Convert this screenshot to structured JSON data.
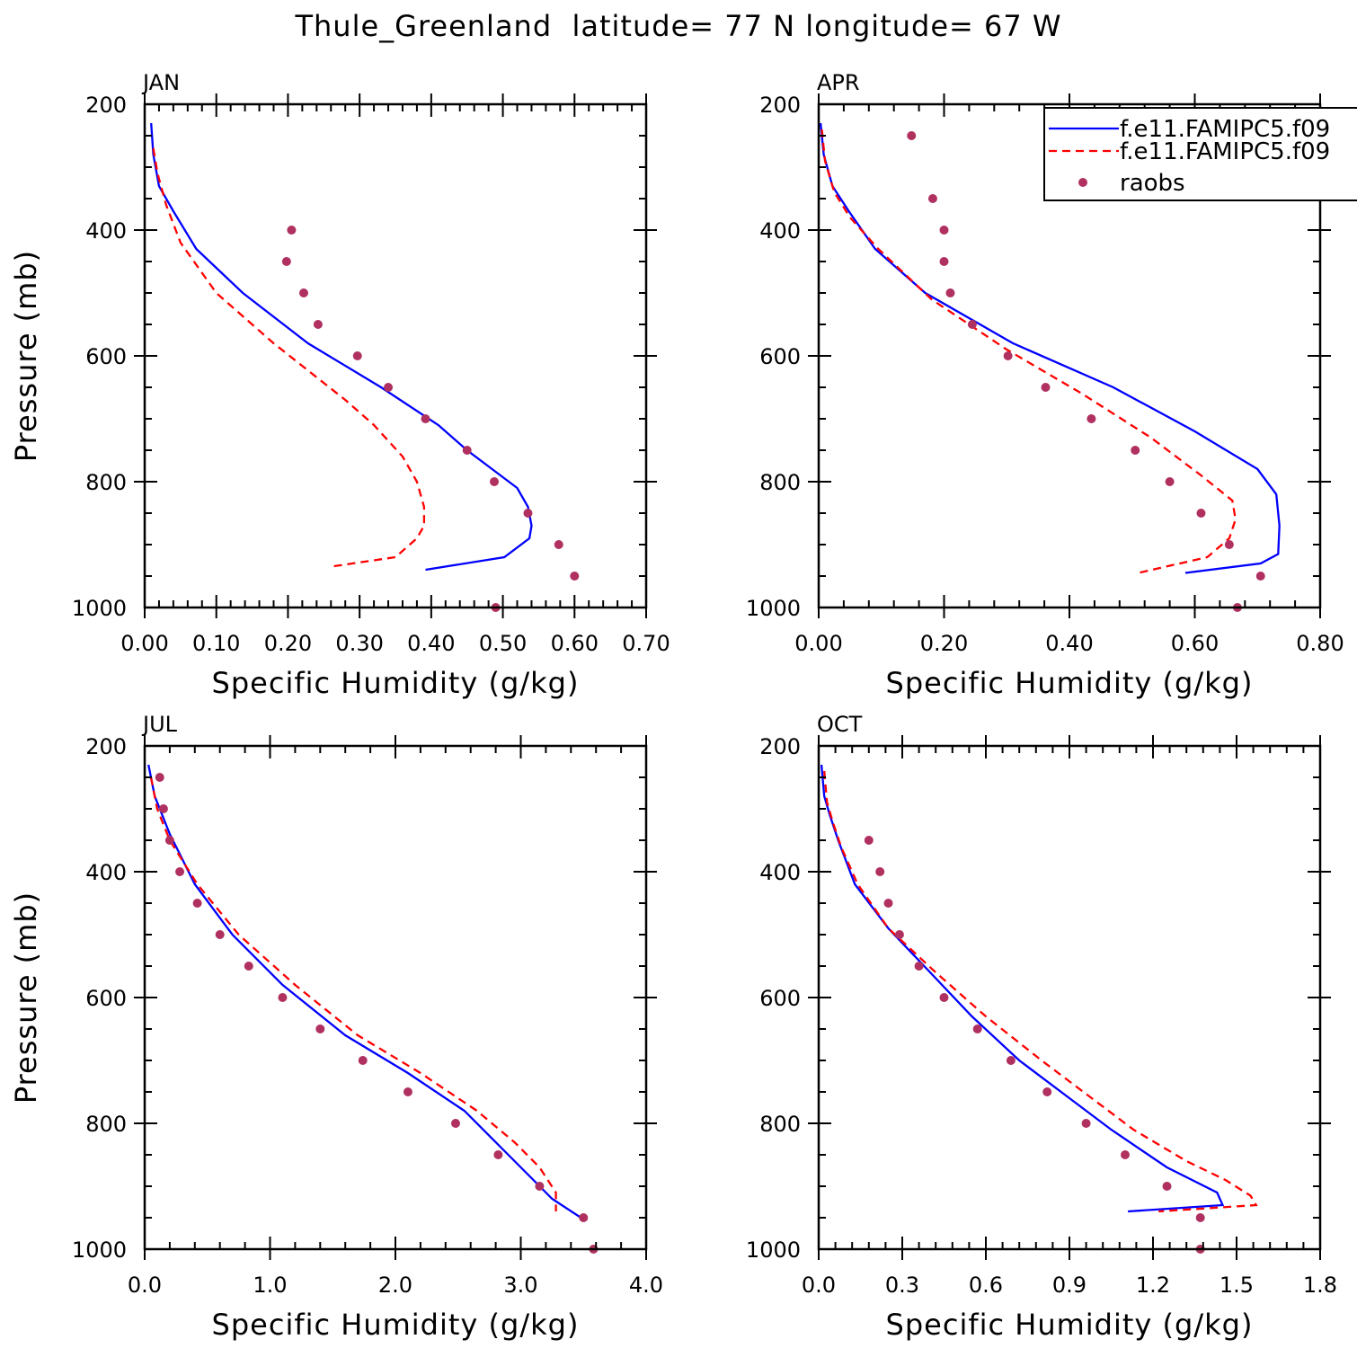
{
  "title": "Thule_Greenland  latitude= 77 N longitude= 67 W",
  "legend": [
    {
      "label": "f.e11.FAMIPC5.f09",
      "color": "#0000ff",
      "style": "solid"
    },
    {
      "label": "f.e11.FAMIPC5.f09",
      "color": "#ff0000",
      "style": "dashed"
    },
    {
      "label": "raobs",
      "color": "#b03060",
      "style": "marker"
    }
  ],
  "chart_data": [
    {
      "type": "line",
      "panel": "JAN",
      "xlabel": "Specific Humidity (g/kg)",
      "ylabel": "Pressure (mb)",
      "xlim": [
        0,
        0.7
      ],
      "ylim": [
        200,
        1000
      ],
      "xticks": [
        "0.00",
        "0.10",
        "0.20",
        "0.30",
        "0.40",
        "0.50",
        "0.60",
        "0.70"
      ],
      "yticks": [
        "200",
        "400",
        "600",
        "800",
        "1000"
      ],
      "series": [
        {
          "color": "#0000ff",
          "dash": "none",
          "kind": "line",
          "x": [
            0.009,
            0.012,
            0.02,
            0.04,
            0.072,
            0.137,
            0.228,
            0.33,
            0.41,
            0.45,
            0.485,
            0.52,
            0.535,
            0.54,
            0.537,
            0.502,
            0.392
          ],
          "y": [
            230,
            280,
            330,
            370,
            430,
            500,
            580,
            650,
            710,
            750,
            780,
            810,
            840,
            870,
            890,
            920,
            940
          ]
        },
        {
          "color": "#ff0000",
          "dash": "9,6",
          "kind": "line",
          "x": [
            0.012,
            0.018,
            0.03,
            0.05,
            0.1,
            0.18,
            0.28,
            0.32,
            0.36,
            0.38,
            0.39,
            0.39,
            0.38,
            0.35,
            0.26
          ],
          "y": [
            270,
            310,
            360,
            420,
            500,
            580,
            670,
            710,
            760,
            800,
            840,
            870,
            890,
            920,
            935
          ]
        },
        {
          "color": "#b03060",
          "dash": "none",
          "kind": "marker",
          "x": [
            0.205,
            0.198,
            0.222,
            0.242,
            0.297,
            0.34,
            0.392,
            0.45,
            0.488,
            0.535,
            0.578,
            0.6,
            0.49
          ],
          "y": [
            400,
            450,
            500,
            550,
            600,
            650,
            700,
            750,
            800,
            850,
            900,
            950,
            1000
          ]
        }
      ]
    },
    {
      "type": "line",
      "panel": "APR",
      "xlabel": "Specific Humidity (g/kg)",
      "ylabel": "",
      "xlim": [
        0,
        0.8
      ],
      "ylim": [
        200,
        1000
      ],
      "xticks": [
        "0.00",
        "0.20",
        "0.40",
        "0.60",
        "0.80"
      ],
      "yticks": [
        "200",
        "400",
        "600",
        "800",
        "1000"
      ],
      "series": [
        {
          "color": "#0000ff",
          "dash": "none",
          "kind": "line",
          "x": [
            0.003,
            0.008,
            0.022,
            0.048,
            0.09,
            0.17,
            0.31,
            0.47,
            0.6,
            0.7,
            0.73,
            0.735,
            0.733,
            0.705,
            0.585
          ],
          "y": [
            230,
            280,
            330,
            370,
            430,
            500,
            580,
            650,
            720,
            780,
            820,
            870,
            915,
            930,
            945
          ]
        },
        {
          "color": "#ff0000",
          "dash": "9,6",
          "kind": "line",
          "x": [
            0.005,
            0.01,
            0.025,
            0.05,
            0.095,
            0.18,
            0.3,
            0.42,
            0.53,
            0.61,
            0.66,
            0.665,
            0.655,
            0.62,
            0.51
          ],
          "y": [
            240,
            290,
            340,
            380,
            430,
            510,
            590,
            660,
            730,
            790,
            830,
            860,
            890,
            920,
            945
          ]
        },
        {
          "color": "#b03060",
          "dash": "none",
          "kind": "marker",
          "x": [
            0.148,
            0.182,
            0.2,
            0.2,
            0.21,
            0.245,
            0.302,
            0.362,
            0.435,
            0.505,
            0.56,
            0.61,
            0.655,
            0.705,
            0.668
          ],
          "y": [
            250,
            350,
            400,
            450,
            500,
            550,
            600,
            650,
            700,
            750,
            800,
            850,
            900,
            950,
            1000
          ]
        }
      ]
    },
    {
      "type": "line",
      "panel": "JUL",
      "xlabel": "Specific Humidity (g/kg)",
      "ylabel": "Pressure (mb)",
      "xlim": [
        0,
        4
      ],
      "ylim": [
        200,
        1000
      ],
      "xticks": [
        "0.0",
        "1.0",
        "2.0",
        "3.0",
        "4.0"
      ],
      "yticks": [
        "200",
        "400",
        "600",
        "800",
        "1000"
      ],
      "series": [
        {
          "color": "#0000ff",
          "dash": "none",
          "kind": "line",
          "x": [
            0.03,
            0.08,
            0.2,
            0.4,
            0.7,
            1.1,
            1.6,
            2.1,
            2.55,
            2.85,
            3.1,
            3.25,
            3.48
          ],
          "y": [
            230,
            280,
            340,
            420,
            500,
            580,
            660,
            720,
            780,
            840,
            890,
            920,
            950
          ]
        },
        {
          "color": "#ff0000",
          "dash": "9,6",
          "kind": "line",
          "x": [
            0.05,
            0.1,
            0.2,
            0.42,
            0.75,
            1.2,
            1.7,
            2.2,
            2.65,
            2.95,
            3.15,
            3.28,
            3.28
          ],
          "y": [
            250,
            300,
            350,
            420,
            500,
            580,
            660,
            720,
            780,
            830,
            870,
            910,
            940
          ]
        },
        {
          "color": "#b03060",
          "dash": "none",
          "kind": "marker",
          "x": [
            0.12,
            0.15,
            0.2,
            0.28,
            0.42,
            0.6,
            0.83,
            1.1,
            1.4,
            1.74,
            2.1,
            2.48,
            2.82,
            3.15,
            3.5,
            3.58
          ],
          "y": [
            250,
            300,
            350,
            400,
            450,
            500,
            550,
            600,
            650,
            700,
            750,
            800,
            850,
            900,
            950,
            1000
          ]
        }
      ]
    },
    {
      "type": "line",
      "panel": "OCT",
      "xlabel": "Specific Humidity (g/kg)",
      "ylabel": "",
      "xlim": [
        0,
        1.8
      ],
      "ylim": [
        200,
        1000
      ],
      "xticks": [
        "0.0",
        "0.3",
        "0.6",
        "0.9",
        "1.2",
        "1.5",
        "1.8"
      ],
      "yticks": [
        "200",
        "400",
        "600",
        "800",
        "1000"
      ],
      "series": [
        {
          "color": "#0000ff",
          "dash": "none",
          "kind": "line",
          "x": [
            0.01,
            0.02,
            0.04,
            0.07,
            0.13,
            0.25,
            0.4,
            0.55,
            0.72,
            0.9,
            1.05,
            1.25,
            1.43,
            1.45,
            1.11
          ],
          "y": [
            230,
            280,
            310,
            350,
            420,
            490,
            560,
            630,
            700,
            760,
            810,
            870,
            910,
            930,
            940
          ]
        },
        {
          "color": "#ff0000",
          "dash": "9,6",
          "kind": "line",
          "x": [
            0.02,
            0.03,
            0.05,
            0.08,
            0.14,
            0.25,
            0.42,
            0.6,
            0.8,
            0.98,
            1.13,
            1.32,
            1.46,
            1.55,
            1.57,
            1.22
          ],
          "y": [
            240,
            290,
            320,
            360,
            420,
            490,
            560,
            630,
            700,
            760,
            810,
            860,
            890,
            915,
            930,
            940
          ]
        },
        {
          "color": "#b03060",
          "dash": "none",
          "kind": "marker",
          "x": [
            0.18,
            0.22,
            0.25,
            0.29,
            0.36,
            0.45,
            0.57,
            0.69,
            0.82,
            0.96,
            1.1,
            1.25,
            1.37,
            1.37
          ],
          "y": [
            350,
            400,
            450,
            500,
            550,
            600,
            650,
            700,
            750,
            800,
            850,
            900,
            950,
            1000
          ]
        }
      ]
    }
  ]
}
